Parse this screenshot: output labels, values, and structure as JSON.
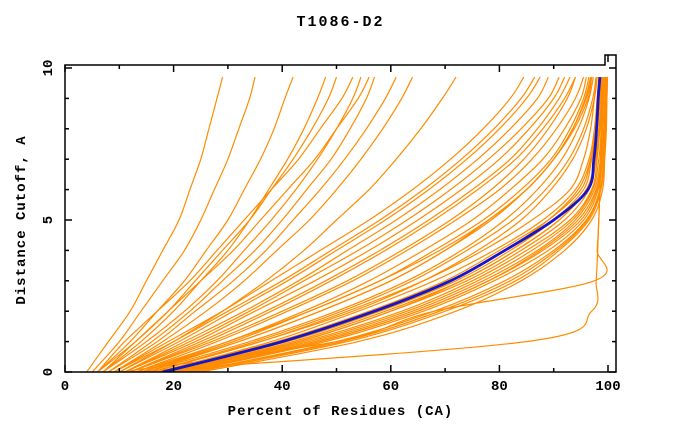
{
  "title": "T1086-D2",
  "axes": {
    "x": {
      "label": "Percent of Residues (CA)",
      "min": 0,
      "max": 100,
      "major_ticks": [
        0,
        20,
        40,
        60,
        80,
        100
      ],
      "major_tick_labels": [
        "0",
        "20",
        "40",
        "60",
        "80",
        "100"
      ],
      "minor_ticks": [
        10,
        30,
        50,
        70,
        90
      ]
    },
    "y": {
      "label": "Distance Cutoff, A",
      "min": 0,
      "max": 10,
      "major_ticks": [
        0,
        5,
        10
      ],
      "major_tick_labels": [
        "0",
        "5",
        "10"
      ],
      "minor_ticks": [
        1,
        2,
        3,
        4,
        6,
        7,
        8,
        9
      ]
    }
  },
  "colors": {
    "model_line": "#ff8c00",
    "highlight_line": "#1515cc",
    "axis": "#000000",
    "text": "#000000",
    "background": "#ffffff"
  },
  "chart_data": {
    "type": "line",
    "title": "T1086-D2",
    "xlabel": "Percent of Residues (CA)",
    "ylabel": "Distance Cutoff, A",
    "xlim": [
      0,
      100
    ],
    "ylim": [
      0,
      10
    ],
    "grid": false,
    "legend": false,
    "cutoff_levels": [
      0,
      1,
      2,
      3,
      4,
      5,
      6,
      7,
      8,
      9,
      9.7
    ],
    "highlight_model_percent": [
      18,
      40,
      57,
      71,
      81,
      90,
      96.3,
      97.4,
      97.9,
      98.2,
      98.5
    ],
    "model_percent_curves": [
      [
        20,
        44,
        62,
        75,
        85,
        93,
        97,
        98,
        98.5,
        99,
        99.3
      ],
      [
        22,
        47,
        65,
        78,
        88,
        95,
        98,
        99,
        99.3,
        99.5,
        99.6
      ],
      [
        19,
        42,
        59,
        73,
        83,
        91,
        96,
        97.5,
        98,
        98.5,
        98.8
      ],
      [
        17,
        38,
        54,
        68,
        79,
        88,
        94,
        96.5,
        97.5,
        98,
        98.3
      ],
      [
        23,
        50,
        68,
        81,
        90,
        96,
        98.5,
        99.2,
        99.5,
        99.7,
        99.8
      ],
      [
        21,
        46,
        64,
        77,
        87,
        94,
        97.5,
        98.6,
        99,
        99.2,
        99.4
      ],
      [
        18,
        41,
        58,
        72,
        82,
        90,
        95.5,
        97,
        98,
        98.4,
        98.7
      ],
      [
        24,
        52,
        70,
        83,
        91,
        96.5,
        98.7,
        99.3,
        99.6,
        99.8,
        99.9
      ],
      [
        20,
        45,
        63,
        76,
        86,
        93.5,
        97.2,
        98.3,
        98.8,
        99.1,
        99.3
      ],
      [
        16,
        36,
        52,
        66,
        77,
        86,
        93,
        95.5,
        96.8,
        97.5,
        98
      ],
      [
        22,
        48,
        66,
        79,
        89,
        95.5,
        98.2,
        99,
        99.4,
        99.6,
        99.7
      ],
      [
        19,
        43,
        60,
        74,
        84,
        92,
        96.5,
        97.8,
        98.4,
        98.8,
        99
      ],
      [
        25,
        54,
        72,
        84,
        92,
        97,
        99,
        99.4,
        99.7,
        99.8,
        99.9
      ],
      [
        21,
        47,
        65,
        78,
        87.5,
        94.5,
        97.8,
        98.8,
        99.2,
        99.4,
        99.5
      ],
      [
        17,
        39,
        56,
        70,
        80,
        89,
        95,
        96.8,
        97.7,
        98.2,
        98.5
      ],
      [
        23,
        51,
        69,
        82,
        90.5,
        96.2,
        98.6,
        99.2,
        99.5,
        99.7,
        99.8
      ],
      [
        12,
        85,
        97,
        97.8,
        98.1,
        98.3,
        98.5,
        98.6,
        98.7,
        98.8,
        98.9
      ],
      [
        10,
        50,
        68,
        97.5,
        98,
        98.3,
        98.5,
        98.7,
        98.8,
        98.9,
        99
      ],
      [
        14,
        30,
        44,
        56,
        66,
        75,
        82,
        88,
        92,
        95,
        96
      ],
      [
        12,
        26,
        38,
        49,
        59,
        68,
        76,
        83,
        88,
        92,
        94
      ],
      [
        15,
        32,
        47,
        60,
        70,
        78,
        85,
        90,
        93.5,
        96,
        97
      ],
      [
        11,
        23,
        34,
        44,
        54,
        63,
        71,
        78,
        84,
        89,
        91
      ],
      [
        13,
        28,
        41,
        53,
        63,
        72,
        80,
        86,
        90.5,
        94,
        95.5
      ],
      [
        10,
        21,
        31,
        41,
        50,
        59,
        67,
        74,
        80,
        85,
        87.5
      ],
      [
        12,
        25,
        37,
        48,
        58,
        67,
        75,
        82,
        87,
        91,
        93
      ],
      [
        14,
        31,
        45,
        58,
        68,
        77,
        84,
        89.5,
        93,
        95.5,
        96.5
      ],
      [
        9,
        19,
        29,
        38,
        47,
        56,
        64,
        71,
        77,
        82,
        84.5
      ],
      [
        11,
        24,
        35,
        46,
        56,
        65,
        73,
        80,
        85.5,
        90,
        92
      ],
      [
        4,
        8,
        12,
        15,
        18,
        21,
        23,
        25,
        26.5,
        28,
        29
      ],
      [
        5,
        10,
        14,
        18,
        22,
        25,
        27.5,
        30,
        32,
        34,
        35
      ],
      [
        6,
        12,
        17,
        22,
        26,
        30,
        33,
        36,
        38.5,
        40.5,
        42
      ],
      [
        7,
        14,
        20,
        25,
        30,
        34,
        37.5,
        41,
        44,
        46.5,
        48
      ],
      [
        6,
        13,
        19,
        24,
        29,
        34,
        38,
        42,
        45.5,
        48.5,
        50
      ],
      [
        8,
        16,
        23,
        29,
        35,
        40,
        44.5,
        49,
        52.5,
        55.5,
        57
      ],
      [
        7,
        15,
        22,
        28,
        33,
        38,
        42.5,
        46.5,
        50,
        53,
        54.5
      ],
      [
        9,
        18,
        26,
        33,
        39,
        45,
        50,
        54.5,
        58.5,
        62,
        64
      ],
      [
        8,
        17,
        24,
        31,
        37,
        42,
        47,
        51.5,
        55.5,
        59,
        61
      ],
      [
        10,
        20,
        29,
        37,
        44,
        50,
        56,
        61,
        65.5,
        69.5,
        72
      ],
      [
        15,
        34,
        50,
        63,
        73,
        81,
        87,
        91.5,
        94.5,
        96.5,
        97.3
      ],
      [
        16,
        36,
        53,
        66,
        76,
        84,
        89.5,
        93.5,
        96,
        97.5,
        98
      ],
      [
        12,
        27,
        40,
        52,
        62,
        71,
        78.5,
        84.5,
        89,
        92.5,
        94
      ],
      [
        14,
        32,
        47,
        60,
        70,
        78.5,
        85,
        90,
        93.5,
        95.8,
        96.8
      ],
      [
        6,
        11,
        17,
        23,
        28,
        33,
        38,
        43,
        47,
        51,
        53
      ],
      [
        9,
        20,
        30,
        40,
        49,
        58,
        66,
        73,
        79,
        84,
        86.5
      ],
      [
        13,
        30,
        45,
        58,
        69,
        78,
        85,
        90,
        93.8,
        96.3,
        97
      ],
      [
        18,
        40,
        57,
        71,
        81,
        89,
        94.5,
        96.8,
        98,
        98.6,
        98.9
      ],
      [
        20,
        43,
        60,
        73,
        83,
        91,
        96,
        97.6,
        98.3,
        98.8,
        99.1
      ],
      [
        7,
        13,
        19,
        25,
        31,
        36,
        41,
        46,
        50,
        54,
        56
      ],
      [
        11,
        22,
        33,
        43,
        52,
        61,
        69,
        76,
        82,
        87,
        89
      ],
      [
        16,
        35,
        51,
        64,
        74,
        82.5,
        88.5,
        92.8,
        95.5,
        97.2,
        97.8
      ]
    ]
  }
}
